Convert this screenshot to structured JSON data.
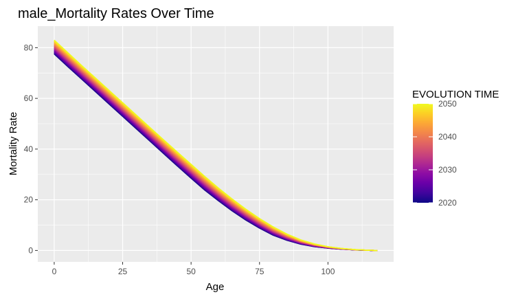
{
  "chart_data": {
    "type": "line",
    "title": "male_Mortality Rates Over Time",
    "xlabel": "Age",
    "ylabel": "Mortality Rate",
    "xlim": [
      -6,
      124
    ],
    "ylim": [
      -4.5,
      88.5
    ],
    "x_ticks": [
      0,
      25,
      50,
      75,
      100
    ],
    "y_ticks": [
      0,
      20,
      40,
      60,
      80
    ],
    "x_tick_labels": [
      "0",
      "25",
      "50",
      "75",
      "100"
    ],
    "y_tick_labels": [
      "0",
      "20",
      "40",
      "60",
      "80"
    ],
    "grid": true,
    "panel_background": "#ebebeb",
    "grid_color": "#ffffff",
    "legend": {
      "title": "EVOLUTION TIME",
      "placement": "right",
      "type": "colorbar",
      "range": [
        2020,
        2050
      ],
      "breaks": [
        2020,
        2030,
        2040,
        2050
      ],
      "break_labels": [
        "2020",
        "2030",
        "2040",
        "2050"
      ],
      "colors": [
        "#0d0887",
        "#41049d",
        "#6a00a8",
        "#8f0da4",
        "#b12a90",
        "#cc4778",
        "#e16462",
        "#f2844b",
        "#fca636",
        "#fcce25",
        "#f0f921"
      ]
    },
    "series_template": {
      "x": [
        0,
        5,
        10,
        15,
        20,
        25,
        30,
        35,
        40,
        45,
        50,
        55,
        60,
        65,
        70,
        75,
        80,
        85,
        90,
        95,
        100,
        105,
        110,
        115,
        118
      ],
      "y_2020": [
        77.5,
        72.5,
        67.6,
        62.7,
        57.8,
        52.9,
        48.0,
        43.1,
        38.2,
        33.3,
        28.5,
        23.8,
        19.6,
        15.6,
        12.0,
        8.8,
        6.0,
        4.0,
        2.5,
        1.5,
        0.9,
        0.5,
        0.2,
        0.05,
        0.0
      ],
      "y_2050": [
        83.0,
        78.0,
        73.0,
        68.1,
        63.2,
        58.3,
        53.4,
        48.5,
        43.6,
        38.8,
        34.0,
        29.2,
        24.6,
        20.3,
        16.3,
        12.6,
        9.3,
        6.5,
        4.2,
        2.6,
        1.5,
        0.8,
        0.35,
        0.1,
        0.0
      ]
    },
    "series": [
      {
        "year": 2020,
        "x": [
          0,
          5,
          10,
          15,
          20,
          25,
          30,
          35,
          40,
          45,
          50,
          55,
          60,
          65,
          70,
          75,
          80,
          85,
          90,
          95,
          100,
          105,
          110,
          115,
          118
        ],
        "y": [
          77.5,
          72.5,
          67.6,
          62.7,
          57.8,
          52.9,
          48.0,
          43.1,
          38.2,
          33.3,
          28.5,
          23.8,
          19.6,
          15.6,
          12.0,
          8.8,
          6.0,
          4.0,
          2.5,
          1.5,
          0.9,
          0.5,
          0.2,
          0.05,
          0.0
        ]
      },
      {
        "year": 2030,
        "x": [
          0,
          5,
          10,
          15,
          20,
          25,
          30,
          35,
          40,
          45,
          50,
          55,
          60,
          65,
          70,
          75,
          80,
          85,
          90,
          95,
          100,
          105,
          110,
          115,
          118
        ],
        "y": [
          79.3,
          74.3,
          69.4,
          64.5,
          59.6,
          54.7,
          49.8,
          44.9,
          40.0,
          35.1,
          30.3,
          25.6,
          21.3,
          17.2,
          13.4,
          10.1,
          7.1,
          4.8,
          3.1,
          1.9,
          1.1,
          0.6,
          0.25,
          0.07,
          0.0
        ]
      },
      {
        "year": 2040,
        "x": [
          0,
          5,
          10,
          15,
          20,
          25,
          30,
          35,
          40,
          45,
          50,
          55,
          60,
          65,
          70,
          75,
          80,
          85,
          90,
          95,
          100,
          105,
          110,
          115,
          118
        ],
        "y": [
          81.2,
          76.2,
          71.2,
          66.3,
          61.4,
          56.5,
          51.6,
          46.7,
          41.8,
          36.9,
          32.1,
          27.4,
          23.0,
          18.8,
          14.9,
          11.3,
          8.2,
          5.6,
          3.6,
          2.2,
          1.3,
          0.7,
          0.3,
          0.08,
          0.0
        ]
      },
      {
        "year": 2050,
        "x": [
          0,
          5,
          10,
          15,
          20,
          25,
          30,
          35,
          40,
          45,
          50,
          55,
          60,
          65,
          70,
          75,
          80,
          85,
          90,
          95,
          100,
          105,
          110,
          115,
          118
        ],
        "y": [
          83.0,
          78.0,
          73.0,
          68.1,
          63.2,
          58.3,
          53.4,
          48.5,
          43.6,
          38.8,
          34.0,
          29.2,
          24.6,
          20.3,
          16.3,
          12.6,
          9.3,
          6.5,
          4.2,
          2.6,
          1.5,
          0.8,
          0.35,
          0.1,
          0.0
        ]
      }
    ]
  }
}
